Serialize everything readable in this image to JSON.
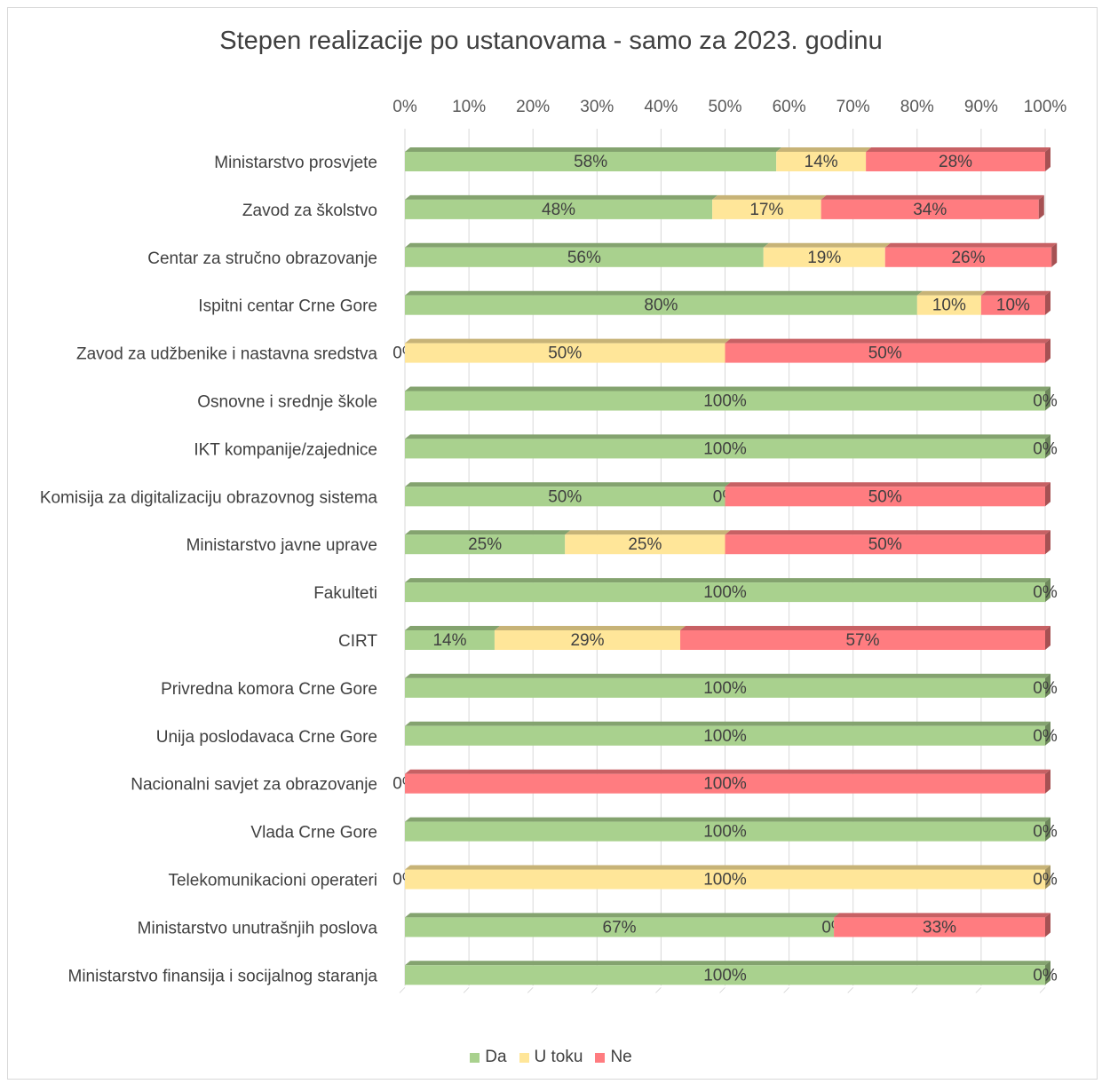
{
  "chart_data": {
    "type": "bar",
    "orientation": "horizontal",
    "stacking": "percent",
    "title": "Stepen realizacije po ustanovama - samo za 2023. godinu",
    "x_ticks": [
      "0%",
      "10%",
      "20%",
      "30%",
      "40%",
      "50%",
      "60%",
      "70%",
      "80%",
      "90%",
      "100%"
    ],
    "xlim": [
      0,
      100
    ],
    "grid": true,
    "legend_position": "bottom",
    "categories": [
      "Ministarstvo prosvjete",
      "Zavod za školstvo",
      "Centar za stručno obrazovanje",
      "Ispitni centar Crne Gore",
      "Zavod za udžbenike i nastavna sredstva",
      "Osnovne i srednje škole",
      "IKT kompanije/zajednice",
      "Komisija za digitalizaciju obrazovnog sistema",
      "Ministarstvo javne uprave",
      "Fakulteti",
      "CIRT",
      "Privredna komora Crne Gore",
      "Unija poslodavaca Crne Gore",
      "Nacionalni savjet za obrazovanje",
      "Vlada Crne Gore",
      "Telekomunikacioni operateri",
      "Ministarstvo unutrašnjih poslova",
      "Ministarstvo finansija i socijalnog staranja"
    ],
    "series": [
      {
        "name": "Da",
        "color": "#a9d18e",
        "values": [
          58,
          48,
          56,
          80,
          0,
          100,
          100,
          50,
          25,
          100,
          14,
          100,
          100,
          0,
          100,
          0,
          67,
          100
        ]
      },
      {
        "name": "U toku",
        "color": "#ffe699",
        "values": [
          14,
          17,
          19,
          10,
          50,
          0,
          0,
          0,
          25,
          0,
          29,
          0,
          0,
          0,
          0,
          100,
          0,
          0
        ]
      },
      {
        "name": "Ne",
        "color": "#ff7c80",
        "values": [
          28,
          34,
          26,
          10,
          50,
          0,
          0,
          50,
          50,
          0,
          57,
          0,
          0,
          100,
          0,
          0,
          33,
          0
        ]
      }
    ],
    "data_labels": [
      [
        "58%",
        "14%",
        "28%"
      ],
      [
        "48%",
        "17%",
        "34%"
      ],
      [
        "56%",
        "19%",
        "26%"
      ],
      [
        "80%",
        "10%",
        "10%"
      ],
      [
        "0%",
        "50%",
        "50%"
      ],
      [
        "100%",
        "",
        "0%"
      ],
      [
        "100%",
        "",
        "0%"
      ],
      [
        "50%",
        "0%",
        "50%"
      ],
      [
        "25%",
        "25%",
        "50%"
      ],
      [
        "100%",
        "",
        "0%"
      ],
      [
        "14%",
        "29%",
        "57%"
      ],
      [
        "100%",
        "",
        "0%"
      ],
      [
        "100%",
        "",
        "0%"
      ],
      [
        "0%",
        "",
        "100%"
      ],
      [
        "100%",
        "",
        "0%"
      ],
      [
        "0%",
        "100%",
        "0%"
      ],
      [
        "67%",
        "0%",
        "33%"
      ],
      [
        "100%",
        "",
        "0%"
      ]
    ]
  }
}
